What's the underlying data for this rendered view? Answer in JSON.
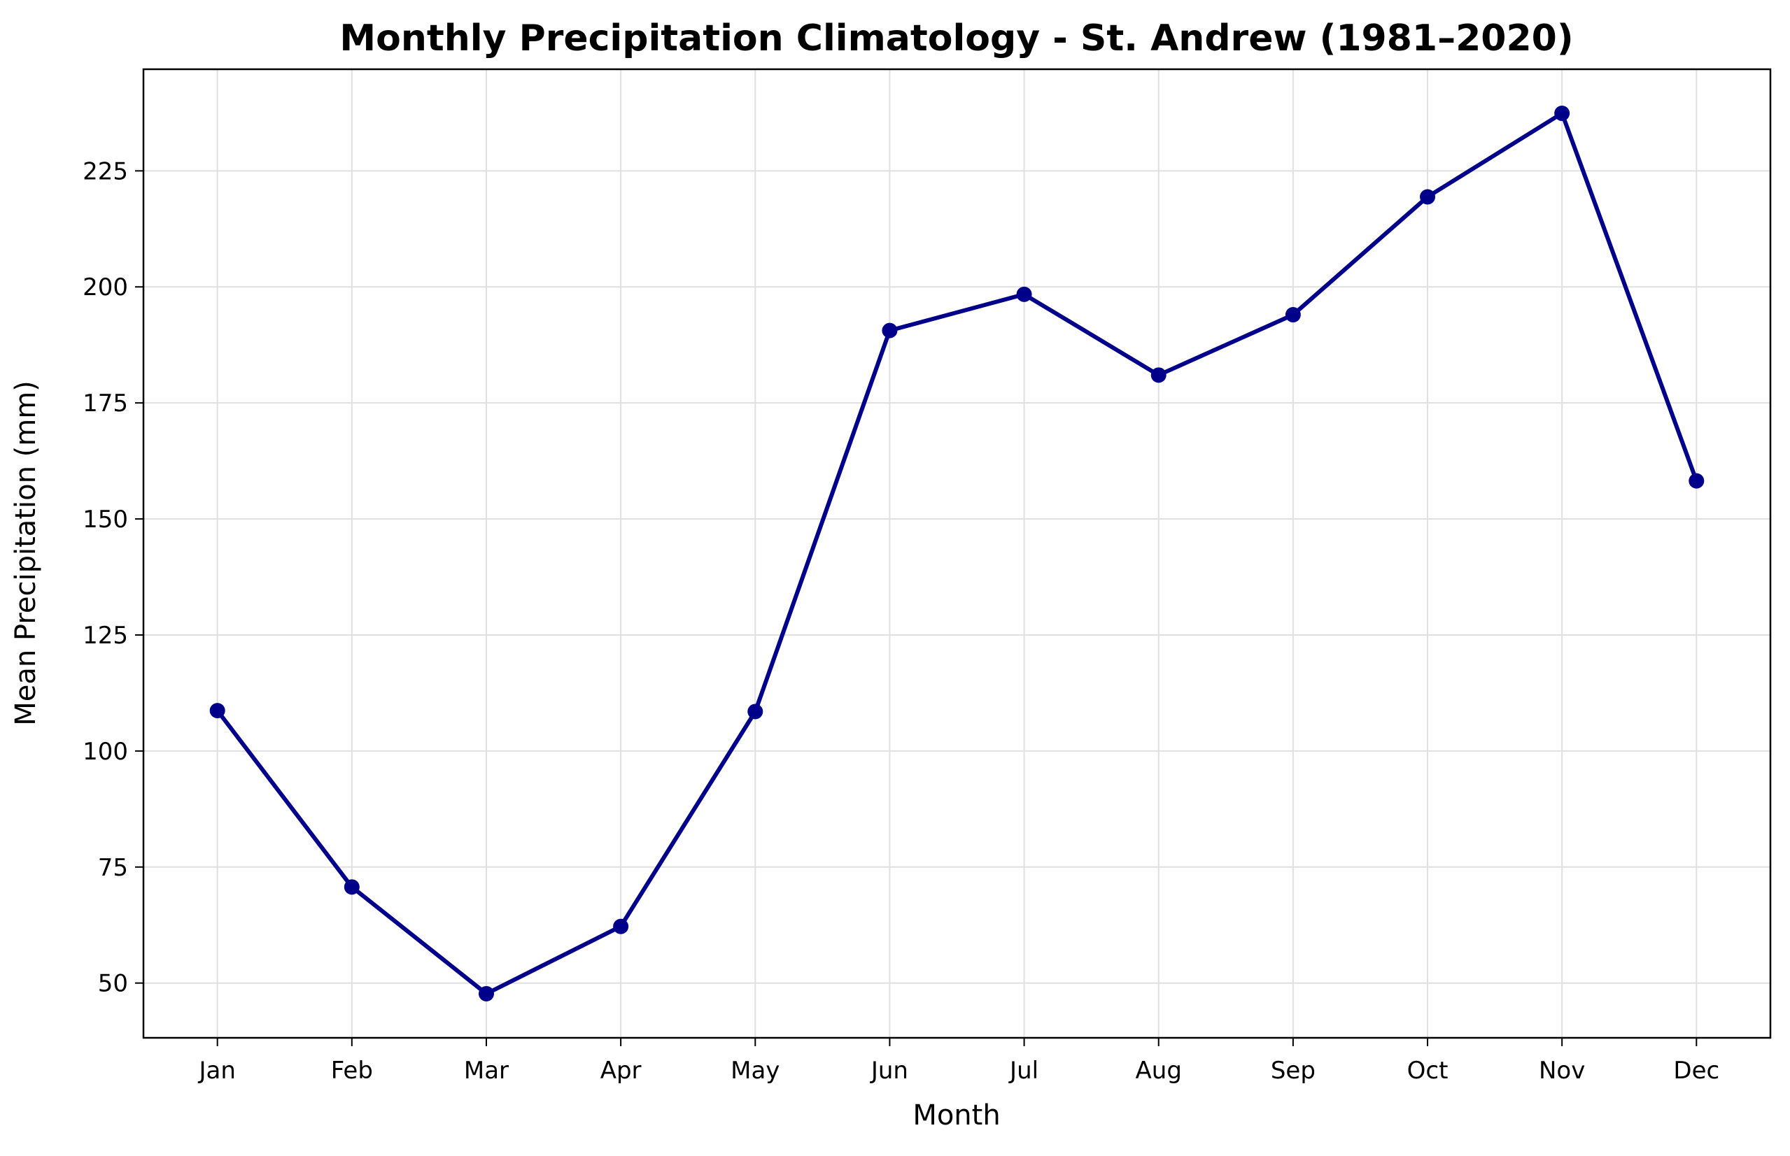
{
  "chart_data": {
    "type": "line",
    "title": "Monthly Precipitation Climatology - St. Andrew (1981–2020)",
    "xlabel": "Month",
    "ylabel": "Mean Precipitation (mm)",
    "categories": [
      "Jan",
      "Feb",
      "Mar",
      "Apr",
      "May",
      "Jun",
      "Jul",
      "Aug",
      "Sep",
      "Oct",
      "Nov",
      "Dec"
    ],
    "series": [
      {
        "values": [
          108.7,
          70.7,
          47.7,
          62.2,
          108.5,
          190.6,
          198.4,
          181.0,
          194.0,
          219.4,
          237.4,
          158.2
        ],
        "color": "#00008b",
        "marker": "circle"
      }
    ],
    "yticks": [
      50,
      75,
      100,
      125,
      150,
      175,
      200,
      225
    ],
    "ylim": [
      38.2,
      246.9
    ],
    "grid": true,
    "legend": "none"
  }
}
